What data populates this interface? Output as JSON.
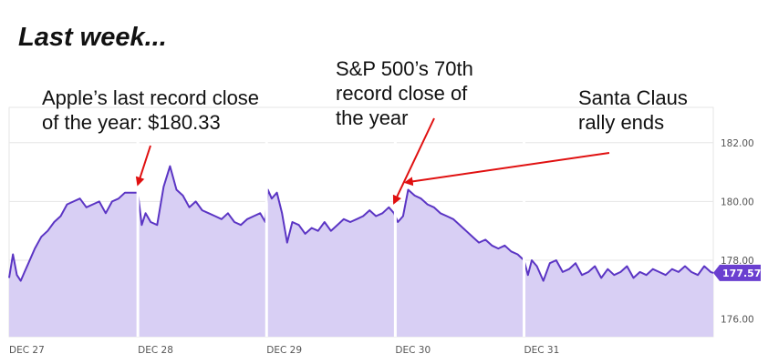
{
  "chart_data": {
    "type": "area",
    "title": "Last week...",
    "xlabel": "",
    "ylabel": "",
    "ylim": [
      175.4,
      183.2
    ],
    "xlim": [
      0,
      5.47
    ],
    "x_ticks": [
      {
        "pos": 0,
        "label": "DEC 27"
      },
      {
        "pos": 1,
        "label": "DEC 28"
      },
      {
        "pos": 2,
        "label": "DEC 29"
      },
      {
        "pos": 3,
        "label": "DEC 30"
      },
      {
        "pos": 4,
        "label": "DEC 31"
      }
    ],
    "y_ticks": [
      {
        "value": 176.0,
        "label": "176.00"
      },
      {
        "value": 178.0,
        "label": "178.00"
      },
      {
        "value": 180.0,
        "label": "180.00"
      },
      {
        "value": 182.0,
        "label": "182.00"
      }
    ],
    "grid": true,
    "last_value": {
      "value": 177.57,
      "label": "177.57"
    },
    "series": [
      {
        "x": [
          0.0,
          0.03,
          0.06,
          0.09,
          0.12,
          0.15,
          0.2,
          0.25,
          0.3,
          0.35,
          0.4,
          0.45,
          0.5,
          0.55,
          0.6,
          0.65,
          0.7,
          0.75,
          0.8,
          0.85,
          0.9,
          0.95,
          1.0,
          1.03,
          1.06,
          1.1,
          1.15,
          1.2,
          1.25,
          1.3,
          1.35,
          1.4,
          1.45,
          1.5,
          1.55,
          1.6,
          1.65,
          1.7,
          1.75,
          1.8,
          1.85,
          1.9,
          1.95,
          1.99,
          2.01,
          2.04,
          2.08,
          2.12,
          2.16,
          2.2,
          2.25,
          2.3,
          2.35,
          2.4,
          2.45,
          2.5,
          2.55,
          2.6,
          2.65,
          2.7,
          2.75,
          2.8,
          2.85,
          2.9,
          2.95,
          2.99,
          3.02,
          3.06,
          3.1,
          3.15,
          3.2,
          3.25,
          3.3,
          3.35,
          3.4,
          3.45,
          3.5,
          3.55,
          3.6,
          3.65,
          3.7,
          3.75,
          3.8,
          3.85,
          3.9,
          3.95,
          4.0,
          4.03,
          4.06,
          4.1,
          4.15,
          4.2,
          4.25,
          4.3,
          4.35,
          4.4,
          4.45,
          4.5,
          4.55,
          4.6,
          4.65,
          4.7,
          4.75,
          4.8,
          4.85,
          4.9,
          4.95,
          5.0,
          5.05,
          5.1,
          5.15,
          5.2,
          5.25,
          5.3,
          5.35,
          5.4,
          5.45,
          5.47
        ],
        "y": [
          177.4,
          178.2,
          177.5,
          177.3,
          177.6,
          177.9,
          178.4,
          178.8,
          179.0,
          179.3,
          179.5,
          179.9,
          180.0,
          180.1,
          179.8,
          179.9,
          180.0,
          179.6,
          180.0,
          180.1,
          180.3,
          180.3,
          180.3,
          179.2,
          179.6,
          179.3,
          179.2,
          180.5,
          181.2,
          180.4,
          180.2,
          179.8,
          180.0,
          179.7,
          179.6,
          179.5,
          179.4,
          179.6,
          179.3,
          179.2,
          179.4,
          179.5,
          179.6,
          179.3,
          180.4,
          180.1,
          180.3,
          179.6,
          178.6,
          179.3,
          179.2,
          178.9,
          179.1,
          179.0,
          179.3,
          179.0,
          179.2,
          179.4,
          179.3,
          179.4,
          179.5,
          179.7,
          179.5,
          179.6,
          179.8,
          179.6,
          179.3,
          179.5,
          180.4,
          180.2,
          180.1,
          179.9,
          179.8,
          179.6,
          179.5,
          179.4,
          179.2,
          179.0,
          178.8,
          178.6,
          178.7,
          178.5,
          178.4,
          178.5,
          178.3,
          178.2,
          178.0,
          177.5,
          178.0,
          177.8,
          177.3,
          177.9,
          178.0,
          177.6,
          177.7,
          177.9,
          177.5,
          177.6,
          177.8,
          177.4,
          177.7,
          177.5,
          177.6,
          177.8,
          177.4,
          177.6,
          177.5,
          177.7,
          177.6,
          177.5,
          177.7,
          177.6,
          177.8,
          177.6,
          177.5,
          177.8,
          177.6,
          177.57
        ],
        "color": "#5b35c4",
        "fill": "#d8cff4"
      }
    ],
    "annotations": [
      {
        "lines": [
          "Apple’s last record close",
          "of the year: $180.33"
        ],
        "target": {
          "x": 1.0,
          "y": 180.33
        }
      },
      {
        "lines": [
          "S&P 500’s 70th",
          "record close of",
          "the year"
        ],
        "target": {
          "x": 2.99,
          "y": 179.7
        }
      },
      {
        "lines": [
          "Santa Claus",
          "rally ends"
        ],
        "target": {
          "x": 3.08,
          "y": 180.4
        }
      }
    ],
    "colors": {
      "line": "#5b35c4",
      "area": "#d8cff4",
      "separator": "#ffffff",
      "arrow": "#e01010",
      "grid": "#e6e6e6",
      "badge": "#6a3fd0"
    }
  }
}
